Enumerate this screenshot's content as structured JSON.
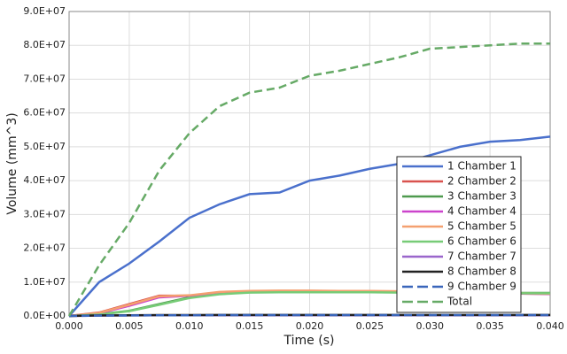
{
  "chart_data": {
    "type": "line",
    "x_label": "Time (s)",
    "y_label": "Volume (mm^3)",
    "x": [
      0,
      0.0025,
      0.005,
      0.0075,
      0.01,
      0.0125,
      0.015,
      0.0175,
      0.02,
      0.0225,
      0.025,
      0.0275,
      0.03,
      0.0325,
      0.035,
      0.0375,
      0.04
    ],
    "xlim": [
      0,
      0.04
    ],
    "xticks": [
      {
        "value": 0,
        "label": "0.000"
      },
      {
        "value": 0.005,
        "label": "0.005"
      },
      {
        "value": 0.01,
        "label": "0.010"
      },
      {
        "value": 0.015,
        "label": "0.015"
      },
      {
        "value": 0.02,
        "label": "0.020"
      },
      {
        "value": 0.025,
        "label": "0.025"
      },
      {
        "value": 0.03,
        "label": "0.030"
      },
      {
        "value": 0.035,
        "label": "0.035"
      },
      {
        "value": 0.04,
        "label": "0.040"
      }
    ],
    "ylim": [
      0,
      90000000
    ],
    "yticks": [
      {
        "value": 0,
        "label": "0.0E+00"
      },
      {
        "value": 10000000,
        "label": "1.0E+07"
      },
      {
        "value": 20000000,
        "label": "2.0E+07"
      },
      {
        "value": 30000000,
        "label": "3.0E+07"
      },
      {
        "value": 40000000,
        "label": "4.0E+07"
      },
      {
        "value": 50000000,
        "label": "5.0E+07"
      },
      {
        "value": 60000000,
        "label": "6.0E+07"
      },
      {
        "value": 70000000,
        "label": "7.0E+07"
      },
      {
        "value": 80000000,
        "label": "8.0E+07"
      },
      {
        "value": 90000000,
        "label": "9.0E+07"
      }
    ],
    "grid": true,
    "legend": "lower right",
    "series": [
      {
        "name": "1 Chamber 1",
        "color": "#4a70cc",
        "style": "solid",
        "values": [
          0,
          10000000,
          15500000,
          22000000,
          29000000,
          33000000,
          36000000,
          36500000,
          40000000,
          41500000,
          43500000,
          45000000,
          47500000,
          50000000,
          51500000,
          52000000,
          53000000
        ]
      },
      {
        "name": "2 Chamber 2",
        "color": "#d9534f",
        "style": "solid",
        "values": [
          0,
          1000000,
          3500000,
          6000000,
          6000000,
          7000000,
          7200000,
          7300000,
          7300000,
          7200000,
          7200000,
          7200000,
          7000000,
          6800000,
          6700000,
          6600000,
          6500000
        ]
      },
      {
        "name": "3 Chamber 3",
        "color": "#4e9a4e",
        "style": "solid",
        "values": [
          0,
          500000,
          1500000,
          3500000,
          5500000,
          6500000,
          7000000,
          7000000,
          7000000,
          7000000,
          7000000,
          7000000,
          6900000,
          6900000,
          6800000,
          6800000,
          6800000
        ]
      },
      {
        "name": "4 Chamber 4",
        "color": "#cc44cc",
        "style": "solid",
        "values": [
          0,
          800000,
          3000000,
          5500000,
          6000000,
          6800000,
          7000000,
          7100000,
          7100000,
          7000000,
          7000000,
          7000000,
          6900000,
          6800000,
          6700000,
          6600000,
          6500000
        ]
      },
      {
        "name": "5 Chamber 5",
        "color": "#f4a070",
        "style": "solid",
        "values": [
          0,
          900000,
          3300000,
          5800000,
          6100000,
          7100000,
          7400000,
          7500000,
          7500000,
          7400000,
          7400000,
          7300000,
          7100000,
          6900000,
          6800000,
          6700000,
          6600000
        ]
      },
      {
        "name": "6 Chamber 6",
        "color": "#77cc77",
        "style": "solid",
        "values": [
          0,
          400000,
          1400000,
          3300000,
          5300000,
          6400000,
          6900000,
          7000000,
          7000000,
          7000000,
          7000000,
          6900000,
          6900000,
          6800000,
          6800000,
          6700000,
          6700000
        ]
      },
      {
        "name": "7 Chamber 7",
        "color": "#9a66cc",
        "style": "solid",
        "values": [
          0,
          100000,
          150000,
          200000,
          200000,
          200000,
          200000,
          200000,
          200000,
          200000,
          200000,
          200000,
          200000,
          200000,
          200000,
          200000,
          200000
        ]
      },
      {
        "name": "8 Chamber 8",
        "color": "#222222",
        "style": "solid",
        "values": [
          0,
          150000,
          200000,
          250000,
          250000,
          300000,
          300000,
          300000,
          300000,
          300000,
          300000,
          300000,
          300000,
          300000,
          300000,
          300000,
          300000
        ]
      },
      {
        "name": "9 Chamber 9",
        "color": "#3a66bb",
        "style": "dashed",
        "values": [
          0,
          100000,
          150000,
          200000,
          200000,
          250000,
          250000,
          250000,
          250000,
          250000,
          250000,
          250000,
          250000,
          250000,
          250000,
          250000,
          250000
        ]
      },
      {
        "name": "Total",
        "color": "#66aa66",
        "style": "dashed",
        "values": [
          0,
          15000000,
          27500000,
          43000000,
          54000000,
          62000000,
          66000000,
          67500000,
          71000000,
          72500000,
          74500000,
          76500000,
          79000000,
          79500000,
          80000000,
          80500000,
          80500000
        ]
      }
    ]
  }
}
